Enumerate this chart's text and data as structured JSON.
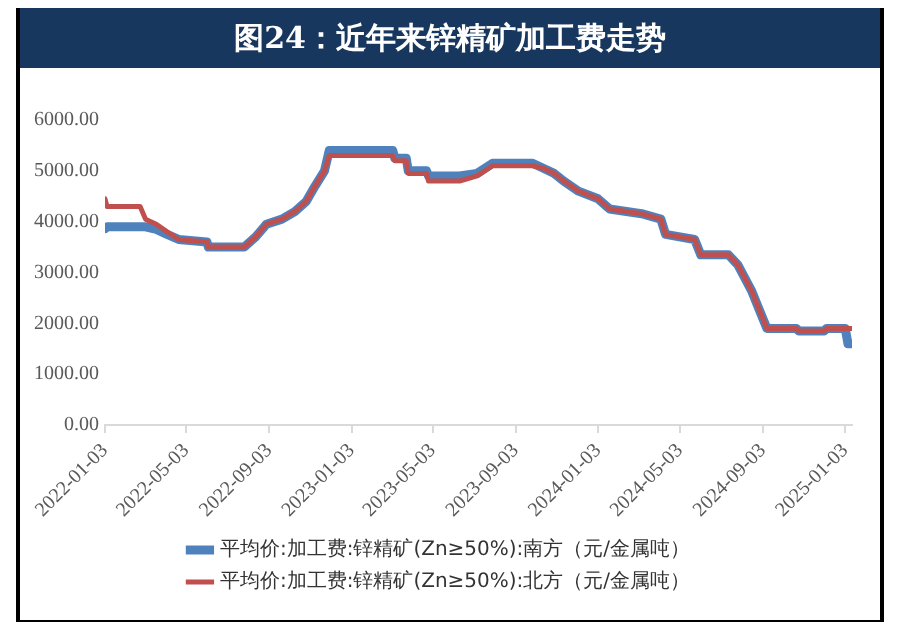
{
  "chart_data": {
    "type": "line",
    "title": "图24：近年来锌精矿加工费走势",
    "x": [
      "2022-01-03",
      "2022-01-06",
      "2022-02-24",
      "2022-03-04",
      "2022-03-20",
      "2022-04-05",
      "2022-04-22",
      "2022-06-03",
      "2022-06-05",
      "2022-07-28",
      "2022-08-14",
      "2022-08-30",
      "2022-09-22",
      "2022-10-11",
      "2022-10-28",
      "2022-11-10",
      "2022-11-24",
      "2022-12-01",
      "2023-03-05",
      "2023-03-08",
      "2023-03-25",
      "2023-03-28",
      "2023-04-24",
      "2023-04-27",
      "2023-06-12",
      "2023-07-08",
      "2023-07-31",
      "2023-09-28",
      "2023-10-14",
      "2023-10-30",
      "2023-11-13",
      "2023-12-05",
      "2024-01-03",
      "2024-01-20",
      "2024-03-10",
      "2024-04-05",
      "2024-04-12",
      "2024-05-25",
      "2024-06-03",
      "2024-07-14",
      "2024-07-28",
      "2024-08-17",
      "2024-09-09",
      "2024-10-23",
      "2024-10-26",
      "2024-12-03",
      "2024-12-06",
      "2025-01-03",
      "2025-01-07",
      "2025-01-13"
    ],
    "series": [
      {
        "name": "平均价:加工费:锌精矿(Zn≥50%):南方（元/金属吨）",
        "color": "#4f81bd",
        "values": [
          3860,
          3900,
          3900,
          3900,
          3850,
          3750,
          3650,
          3600,
          3500,
          3500,
          3700,
          3950,
          4050,
          4200,
          4400,
          4700,
          5000,
          5400,
          5400,
          5250,
          5250,
          5000,
          5000,
          4900,
          4900,
          4950,
          5150,
          5150,
          5050,
          4950,
          4800,
          4600,
          4450,
          4250,
          4150,
          4050,
          3750,
          3650,
          3350,
          3350,
          3150,
          2650,
          1900,
          1900,
          1850,
          1850,
          1900,
          1900,
          1600,
          1600
        ]
      },
      {
        "name": "平均价:加工费:锌精矿(Zn≥50%):北方（元/金属吨）",
        "color": "#c0504d",
        "values": [
          4450,
          4300,
          4300,
          4050,
          3950,
          3800,
          3650,
          3600,
          3500,
          3500,
          3700,
          3950,
          4050,
          4200,
          4400,
          4700,
          5000,
          5300,
          5300,
          5200,
          5200,
          4950,
          4950,
          4800,
          4800,
          4900,
          5100,
          5100,
          5050,
          4950,
          4800,
          4600,
          4450,
          4250,
          4150,
          4050,
          3750,
          3650,
          3350,
          3350,
          3150,
          2650,
          1900,
          1900,
          1850,
          1850,
          1900,
          1900,
          1900,
          1900
        ]
      }
    ],
    "ylim": [
      0,
      6000
    ],
    "yticks": [
      {
        "value": 0,
        "label": "0.00"
      },
      {
        "value": 1000,
        "label": "1000.00"
      },
      {
        "value": 2000,
        "label": "2000.00"
      },
      {
        "value": 3000,
        "label": "3000.00"
      },
      {
        "value": 4000,
        "label": "4000.00"
      },
      {
        "value": 5000,
        "label": "5000.00"
      },
      {
        "value": 6000,
        "label": "6000.00"
      }
    ],
    "xlim": [
      "2022-01-03",
      "2025-01-13"
    ],
    "xticks": [
      "2022-01-03",
      "2022-05-03",
      "2022-09-03",
      "2023-01-03",
      "2023-05-03",
      "2023-09-03",
      "2024-01-03",
      "2024-05-03",
      "2024-09-03",
      "2025-01-03"
    ],
    "grid": false,
    "legend": "bottom",
    "marker": "none",
    "line_style": "solid"
  }
}
